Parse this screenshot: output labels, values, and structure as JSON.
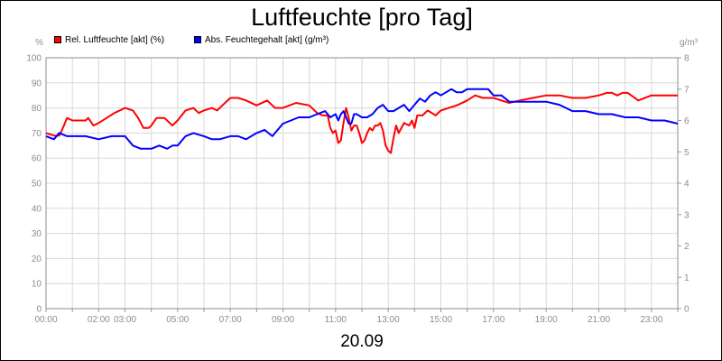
{
  "chart_data": {
    "type": "line",
    "title": "Luftfeuchte [pro Tag]",
    "xlabel": "20.09",
    "y_unit_left": "%",
    "y_unit_right": "g/m³",
    "ylim_left": [
      0,
      100
    ],
    "ylim_right": [
      0,
      8
    ],
    "x_range_hours": [
      0,
      24
    ],
    "left_ticks": [
      "0",
      "10",
      "20",
      "30",
      "40",
      "50",
      "60",
      "70",
      "80",
      "90",
      "100"
    ],
    "right_ticks": [
      "0",
      "1",
      "2",
      "3",
      "4",
      "5",
      "6",
      "7",
      "8"
    ],
    "x_ticks": [
      "00:00",
      "02:00",
      "03:00",
      "05:00",
      "07:00",
      "09:00",
      "11:00",
      "13:00",
      "15:00",
      "17:00",
      "19:00",
      "21:00",
      "23:00"
    ],
    "x_tick_hours": [
      0,
      2,
      3,
      5,
      7,
      9,
      11,
      13,
      15,
      17,
      19,
      21,
      23
    ],
    "grid": true,
    "legend_position": "top-left",
    "series": [
      {
        "name": "Rel. Luftfeuchte [akt] (%)",
        "color": "#ff0000",
        "axis": "left",
        "x": [
          0,
          0.3,
          0.5,
          0.6,
          0.8,
          1.0,
          1.5,
          1.6,
          1.8,
          2.0,
          2.3,
          2.6,
          3.0,
          3.3,
          3.5,
          3.7,
          3.9,
          4.0,
          4.2,
          4.5,
          4.8,
          5.0,
          5.3,
          5.6,
          5.8,
          6.0,
          6.3,
          6.5,
          6.7,
          7.0,
          7.3,
          7.6,
          8.0,
          8.4,
          8.7,
          9.0,
          9.5,
          10.0,
          10.3,
          10.5,
          10.7,
          10.8,
          10.9,
          11.0,
          11.1,
          11.2,
          11.3,
          11.4,
          11.5,
          11.6,
          11.7,
          11.8,
          11.9,
          12.0,
          12.1,
          12.2,
          12.3,
          12.4,
          12.5,
          12.6,
          12.7,
          12.8,
          12.9,
          13.0,
          13.1,
          13.2,
          13.3,
          13.4,
          13.6,
          13.8,
          13.9,
          14.0,
          14.1,
          14.3,
          14.5,
          14.8,
          15.0,
          15.3,
          15.6,
          16.0,
          16.3,
          16.6,
          17.0,
          17.3,
          17.6,
          18.0,
          18.5,
          19.0,
          19.5,
          20.0,
          20.5,
          21.0,
          21.3,
          21.5,
          21.7,
          21.9,
          22.1,
          22.5,
          23.0,
          23.5,
          23.8,
          24.0
        ],
        "values": [
          70,
          69,
          69,
          71,
          76,
          75,
          75,
          76,
          73,
          74,
          76,
          78,
          80,
          79,
          76,
          72,
          72,
          73,
          76,
          76,
          73,
          75,
          79,
          80,
          78,
          79,
          80,
          79,
          81,
          84,
          84,
          83,
          81,
          83,
          80,
          80,
          82,
          81,
          78,
          77,
          77,
          72,
          70,
          71,
          66,
          67,
          74,
          80,
          76,
          71,
          73,
          73,
          70,
          66,
          67,
          70,
          72,
          71,
          73,
          73,
          74,
          71,
          65,
          63,
          62,
          68,
          73,
          70,
          74,
          73,
          75,
          72,
          77,
          77,
          79,
          77,
          79,
          80,
          81,
          83,
          85,
          84,
          84,
          83,
          82,
          83,
          84,
          85,
          85,
          84,
          84,
          85,
          86,
          86,
          85,
          86,
          86,
          83,
          85,
          85,
          85,
          85
        ]
      },
      {
        "name": "Abs. Feuchtegehalt [akt] (g/m³)",
        "color": "#0000ff",
        "axis": "right",
        "x": [
          0,
          0.3,
          0.5,
          0.8,
          1.0,
          1.5,
          2.0,
          2.5,
          3.0,
          3.3,
          3.6,
          4.0,
          4.3,
          4.6,
          4.8,
          5.0,
          5.3,
          5.6,
          6.0,
          6.3,
          6.6,
          7.0,
          7.3,
          7.6,
          8.0,
          8.3,
          8.6,
          9.0,
          9.3,
          9.6,
          10.0,
          10.3,
          10.6,
          10.8,
          11.0,
          11.1,
          11.2,
          11.3,
          11.4,
          11.5,
          11.6,
          11.7,
          11.8,
          12.0,
          12.2,
          12.4,
          12.6,
          12.8,
          13.0,
          13.2,
          13.4,
          13.6,
          13.8,
          14.0,
          14.2,
          14.4,
          14.6,
          14.8,
          15.0,
          15.2,
          15.4,
          15.6,
          15.8,
          16.0,
          16.2,
          16.4,
          16.6,
          16.8,
          17.0,
          17.3,
          17.6,
          18.0,
          18.5,
          19.0,
          19.5,
          20.0,
          20.5,
          21.0,
          21.5,
          22.0,
          22.5,
          23.0,
          23.5,
          24.0
        ],
        "values": [
          5.5,
          5.4,
          5.6,
          5.5,
          5.5,
          5.5,
          5.4,
          5.5,
          5.5,
          5.2,
          5.1,
          5.1,
          5.2,
          5.1,
          5.2,
          5.2,
          5.5,
          5.6,
          5.5,
          5.4,
          5.4,
          5.5,
          5.5,
          5.4,
          5.6,
          5.7,
          5.5,
          5.9,
          6.0,
          6.1,
          6.1,
          6.2,
          6.3,
          6.1,
          6.2,
          6.0,
          6.2,
          6.3,
          6.1,
          5.9,
          5.9,
          6.2,
          6.2,
          6.1,
          6.1,
          6.2,
          6.4,
          6.5,
          6.3,
          6.3,
          6.4,
          6.5,
          6.3,
          6.5,
          6.7,
          6.6,
          6.8,
          6.9,
          6.8,
          6.9,
          7.0,
          6.9,
          6.9,
          7.0,
          7.0,
          7.0,
          7.0,
          7.0,
          6.8,
          6.8,
          6.6,
          6.6,
          6.6,
          6.6,
          6.5,
          6.3,
          6.3,
          6.2,
          6.2,
          6.1,
          6.1,
          6.0,
          6.0,
          5.9
        ]
      }
    ]
  }
}
